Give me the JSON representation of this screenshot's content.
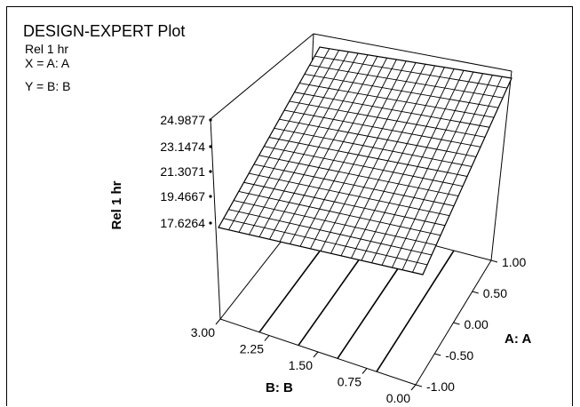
{
  "chart_data": {
    "type": "surface",
    "title": "DESIGN-EXPERT Plot",
    "info_lines": [
      "Rel 1 hr",
      "X = A: A",
      "Y = B: B"
    ],
    "zlabel": "Rel 1 hr",
    "xlabel": "A: A",
    "ylabel": "B: B",
    "z_ticks": [
      "24.9877",
      "23.1474",
      "21.3071",
      "19.4667",
      "17.6264"
    ],
    "x_ticks": [
      "1.00",
      "0.50",
      "0.00",
      "-0.50",
      "-1.00"
    ],
    "y_ticks": [
      "3.00",
      "2.25",
      "1.50",
      "0.75",
      "0.00"
    ],
    "xlim": [
      -1.0,
      1.0
    ],
    "ylim": [
      0.0,
      3.0
    ],
    "zlim": [
      17.6264,
      24.9877
    ],
    "surface_corners": [
      {
        "A": -1.0,
        "B": 0.0,
        "z": 17.2
      },
      {
        "A": 1.0,
        "B": 0.0,
        "z": 25.0
      },
      {
        "A": 1.0,
        "B": 3.0,
        "z": 25.1
      },
      {
        "A": -1.0,
        "B": 3.0,
        "z": 17.6
      }
    ],
    "grid_divisions": 20,
    "contour_lines": 4,
    "colors": {
      "line": "#000000",
      "background": "#ffffff"
    }
  }
}
